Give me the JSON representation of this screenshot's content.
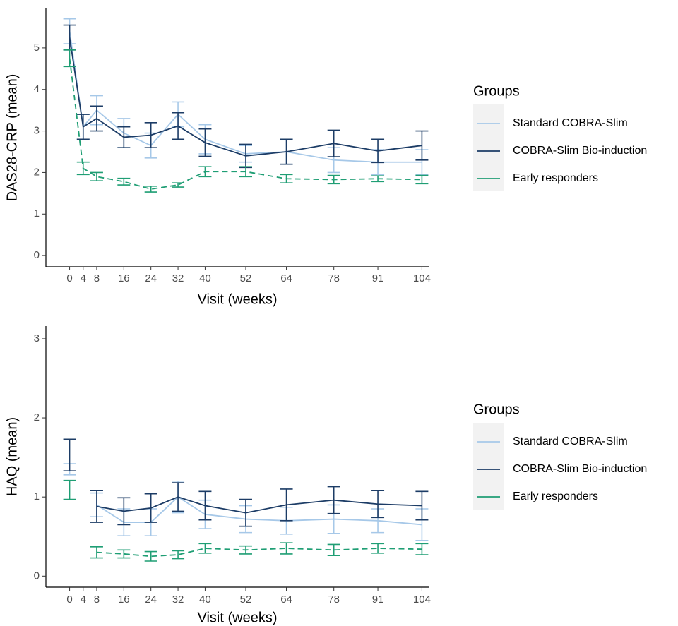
{
  "chart_data": [
    {
      "type": "line",
      "xlabel": "Visit (weeks)",
      "ylabel": "DAS28-CRP (mean)",
      "x": [
        0,
        4,
        8,
        16,
        24,
        32,
        40,
        52,
        64,
        78,
        91,
        104
      ],
      "xlim": [
        -7,
        106
      ],
      "xticks": [
        0,
        4,
        8,
        16,
        24,
        32,
        40,
        52,
        64,
        78,
        91,
        104
      ],
      "ylim": [
        -0.27,
        5.95
      ],
      "yticks": [
        0,
        1,
        2,
        3,
        4,
        5
      ],
      "legend_title": "Groups",
      "legend_position": "right",
      "series": [
        {
          "name": "Standard COBRA-Slim",
          "color": "#a6c8e8",
          "line_style": "solid",
          "values": [
            5.4,
            3.1,
            3.5,
            2.95,
            2.65,
            3.4,
            2.8,
            2.45,
            2.5,
            2.3,
            2.25,
            2.25
          ],
          "error": [
            0.3,
            0.3,
            0.35,
            0.35,
            0.3,
            0.3,
            0.35,
            0.2,
            0.3,
            0.3,
            0.3,
            0.3
          ]
        },
        {
          "name": "COBRA-Slim Bio-induction",
          "color": "#1c3c66",
          "line_style": "solid",
          "values": [
            5.25,
            3.1,
            3.3,
            2.85,
            2.9,
            3.12,
            2.72,
            2.4,
            2.5,
            2.7,
            2.52,
            2.65
          ],
          "error": [
            0.3,
            0.3,
            0.3,
            0.25,
            0.3,
            0.32,
            0.33,
            0.28,
            0.3,
            0.32,
            0.28,
            0.35
          ]
        },
        {
          "name": "Early responders",
          "color": "#1f9e74",
          "line_style": "dashed",
          "values": [
            4.75,
            2.1,
            1.9,
            1.78,
            1.6,
            1.7,
            2.02,
            2.02,
            1.85,
            1.83,
            1.85,
            1.83
          ],
          "error": [
            0.2,
            0.15,
            0.1,
            0.08,
            0.07,
            0.05,
            0.12,
            0.12,
            0.1,
            0.1,
            0.07,
            0.1
          ]
        }
      ]
    },
    {
      "type": "line",
      "xlabel": "Visit (weeks)",
      "ylabel": "HAQ (mean)",
      "x": [
        0,
        4,
        8,
        16,
        24,
        32,
        40,
        52,
        64,
        78,
        91,
        104
      ],
      "xlim": [
        -7,
        106
      ],
      "xticks": [
        0,
        4,
        8,
        16,
        24,
        32,
        40,
        52,
        64,
        78,
        91,
        104
      ],
      "ylim": [
        -0.14,
        3.16
      ],
      "yticks": [
        0,
        1,
        2,
        3
      ],
      "legend_title": "Groups",
      "legend_position": "right",
      "series": [
        {
          "name": "Standard COBRA-Slim",
          "color": "#a6c8e8",
          "line_style": "solid",
          "values": [
            1.35,
            null,
            0.9,
            0.68,
            0.68,
            1.0,
            0.78,
            0.72,
            0.7,
            0.72,
            0.7,
            0.65
          ],
          "error": [
            0.07,
            null,
            0.15,
            0.17,
            0.17,
            0.2,
            0.18,
            0.17,
            0.17,
            0.18,
            0.15,
            0.2
          ]
        },
        {
          "name": "COBRA-Slim Bio-induction",
          "color": "#1c3c66",
          "line_style": "solid",
          "values": [
            1.53,
            null,
            0.88,
            0.82,
            0.86,
            1.0,
            0.89,
            0.8,
            0.9,
            0.96,
            0.91,
            0.89
          ],
          "error": [
            0.2,
            null,
            0.2,
            0.17,
            0.18,
            0.18,
            0.18,
            0.17,
            0.2,
            0.17,
            0.17,
            0.18
          ]
        },
        {
          "name": "Early responders",
          "color": "#1f9e74",
          "line_style": "dashed",
          "values": [
            1.09,
            null,
            0.3,
            0.28,
            0.25,
            0.27,
            0.35,
            0.33,
            0.35,
            0.33,
            0.35,
            0.34
          ],
          "error": [
            0.12,
            null,
            0.07,
            0.05,
            0.06,
            0.05,
            0.06,
            0.05,
            0.07,
            0.07,
            0.06,
            0.07
          ]
        }
      ]
    }
  ]
}
